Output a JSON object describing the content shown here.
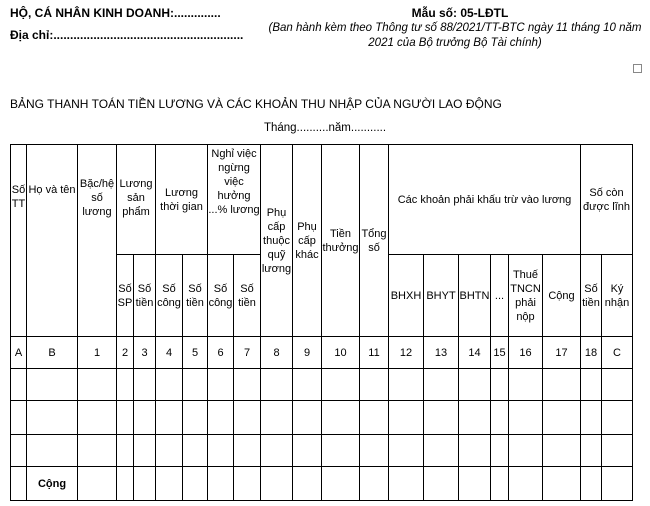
{
  "header": {
    "org": "HỘ, CÁ NHÂN KINH DOANH:..............",
    "address": "Địa chỉ:.........................................................",
    "form_no": "Mẫu số: 05-LĐTL",
    "issued_by": "(Ban hành kèm theo Thông tư số 88/2021/TT-BTC ngày 11 tháng 10 năm 2021 của Bộ trưởng Bộ Tài chính)"
  },
  "title": "BẢNG THANH TOÁN TIỀN LƯƠNG VÀ CÁC KHOẢN THU NHẬP CỦA NGƯỜI LAO ĐỘNG",
  "period": "Tháng..........năm...........",
  "table": {
    "h1": {
      "stt": "Số TT",
      "name": "Họ và tên",
      "grade": "Bặc/hệ số lương",
      "product_wage": "Lương sản phẩm",
      "time_wage": "Lương thời gian",
      "leave": "Nghỉ việc ngừng việc hưởng ...% lương",
      "allow_fund": "Phụ cấp thuộc quỹ lương",
      "allow_other": "Phụ cấp khác",
      "bonus": "Tiền thưởng",
      "total": "Tổng số",
      "deductions": "Các khoản phải khấu trừ vào lương",
      "remaining": "Số còn được lĩnh"
    },
    "h2": [
      "Số SP",
      "Số tiền",
      "Số công",
      "Số tiền",
      "Số công",
      "Số tiền",
      "BHXH",
      "BHYT",
      "BHTN",
      "...",
      "Thuế TNCN phải nộp",
      "Cộng",
      "Số tiền",
      "Ký nhận"
    ],
    "index_row": [
      "A",
      "B",
      "1",
      "2",
      "3",
      "4",
      "5",
      "6",
      "7",
      "8",
      "9",
      "10",
      "11",
      "12",
      "13",
      "14",
      "15",
      "16",
      "17",
      "18",
      "C"
    ],
    "total_label": "Cộng"
  }
}
